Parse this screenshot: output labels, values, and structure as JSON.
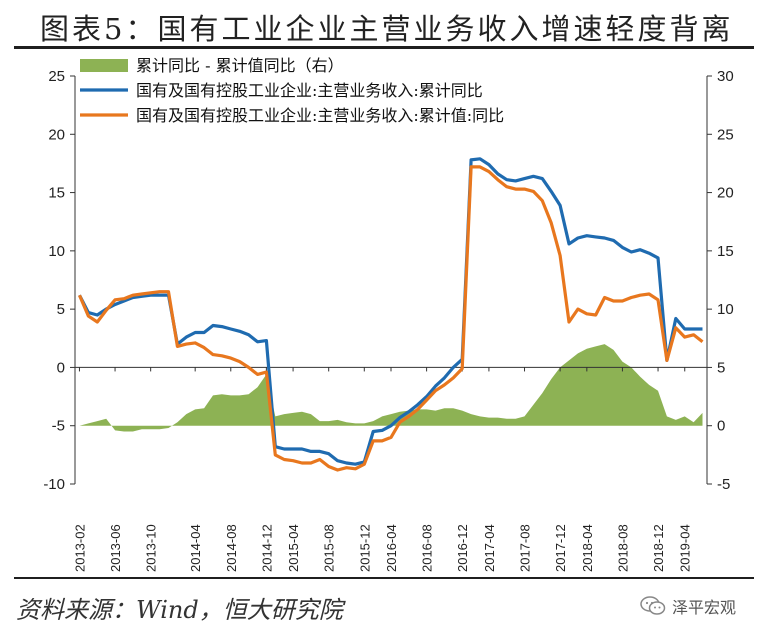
{
  "title": "图表5：国有工业企业主营业务收入增速轻度背离",
  "source": "资料来源：Wind，恒大研究院",
  "brand": {
    "name": "泽平宏观",
    "icon": "wechat-icon"
  },
  "chart_data": {
    "type": "line",
    "x": [
      "2013-02",
      "2013-03",
      "2013-04",
      "2013-05",
      "2013-06",
      "2013-07",
      "2013-08",
      "2013-09",
      "2013-10",
      "2013-11",
      "2013-12",
      "2014-02",
      "2014-03",
      "2014-04",
      "2014-05",
      "2014-06",
      "2014-07",
      "2014-08",
      "2014-09",
      "2014-10",
      "2014-11",
      "2014-12",
      "2015-02",
      "2015-03",
      "2015-04",
      "2015-05",
      "2015-06",
      "2015-07",
      "2015-08",
      "2015-09",
      "2015-10",
      "2015-11",
      "2015-12",
      "2016-02",
      "2016-03",
      "2016-04",
      "2016-05",
      "2016-06",
      "2016-07",
      "2016-08",
      "2016-09",
      "2016-10",
      "2016-11",
      "2016-12",
      "2017-02",
      "2017-03",
      "2017-04",
      "2017-05",
      "2017-06",
      "2017-07",
      "2017-08",
      "2017-09",
      "2017-10",
      "2017-11",
      "2017-12",
      "2018-02",
      "2018-03",
      "2018-04",
      "2018-05",
      "2018-06",
      "2018-07",
      "2018-08",
      "2018-09",
      "2018-10",
      "2018-11",
      "2018-12",
      "2019-02",
      "2019-03",
      "2019-04",
      "2019-05",
      "2019-06"
    ],
    "x_tick_labels": [
      "2013-02",
      "2013-06",
      "2013-10",
      "2014-04",
      "2014-08",
      "2014-12",
      "2015-04",
      "2015-08",
      "2015-12",
      "2016-04",
      "2016-08",
      "2016-12",
      "2017-04",
      "2017-08",
      "2017-12",
      "2018-04",
      "2018-08",
      "2018-12",
      "2019-04"
    ],
    "y_left": {
      "ylim": [
        -10,
        25
      ],
      "ticks": [
        -10,
        -5,
        0,
        5,
        10,
        15,
        20,
        25
      ]
    },
    "y_right": {
      "ylim": [
        -5,
        30
      ],
      "ticks": [
        -5,
        0,
        5,
        10,
        15,
        20,
        25,
        30
      ]
    },
    "grid": false,
    "legend_position": "top-left",
    "colors": {
      "area": "#8DB254",
      "series1": "#1F6BB0",
      "series2": "#E8771E",
      "axis": "#333333"
    },
    "series": [
      {
        "name": "累计同比 - 累计值同比（右）",
        "type": "area",
        "axis": "right",
        "values": [
          0,
          0.2,
          0.4,
          0.6,
          -0.4,
          -0.5,
          -0.5,
          -0.3,
          -0.3,
          -0.3,
          -0.2,
          0.3,
          1.0,
          1.4,
          1.5,
          2.6,
          2.7,
          2.6,
          2.6,
          2.7,
          3.3,
          4.4,
          0.8,
          1.0,
          1.1,
          1.2,
          1.0,
          0.4,
          0.4,
          0.5,
          0.3,
          0.2,
          0.2,
          0.4,
          0.8,
          1.0,
          1.2,
          1.3,
          1.4,
          1.4,
          1.3,
          1.5,
          1.5,
          1.3,
          1.0,
          0.8,
          0.7,
          0.7,
          0.6,
          0.6,
          0.8,
          1.8,
          2.8,
          4.0,
          5.0,
          5.6,
          6.2,
          6.6,
          6.8,
          7.0,
          6.5,
          5.5,
          5.0,
          4.2,
          3.5,
          3.0,
          0.8,
          0.5,
          0.8,
          0.3,
          1.1
        ]
      },
      {
        "name": "国有及国有控股工业企业:主营业务收入:累计同比",
        "type": "line",
        "axis": "left",
        "values": [
          6.2,
          4.7,
          4.5,
          5.0,
          5.4,
          5.7,
          6.0,
          6.1,
          6.2,
          6.2,
          6.2,
          2.0,
          2.6,
          3.0,
          3.0,
          3.6,
          3.5,
          3.3,
          3.1,
          2.8,
          2.2,
          2.3,
          -6.8,
          -7.0,
          -7.0,
          -7.0,
          -7.2,
          -7.2,
          -7.4,
          -8.0,
          -8.2,
          -8.3,
          -8.1,
          -5.5,
          -5.4,
          -5.0,
          -4.3,
          -3.8,
          -3.2,
          -2.5,
          -1.6,
          -0.9,
          0.0,
          0.7,
          17.8,
          17.9,
          17.4,
          16.6,
          16.1,
          16.0,
          16.2,
          16.4,
          16.2,
          15.1,
          13.9,
          10.6,
          11.1,
          11.3,
          11.2,
          11.1,
          10.9,
          10.3,
          9.9,
          10.1,
          9.8,
          9.4,
          0.6,
          4.2,
          3.3,
          3.3,
          3.3
        ]
      },
      {
        "name": "国有及国有控股工业企业:主营业务收入:累计值:同比",
        "type": "line",
        "axis": "left",
        "values": [
          6.2,
          4.4,
          3.9,
          4.9,
          5.8,
          5.9,
          6.2,
          6.3,
          6.4,
          6.5,
          6.5,
          1.8,
          2.0,
          2.1,
          1.7,
          1.1,
          1.0,
          0.8,
          0.5,
          0.0,
          -0.6,
          -0.4,
          -7.5,
          -7.9,
          -8.0,
          -8.2,
          -8.2,
          -7.9,
          -8.5,
          -8.8,
          -8.6,
          -8.7,
          -8.3,
          -6.3,
          -6.3,
          -6.0,
          -4.7,
          -4.2,
          -3.6,
          -2.8,
          -2.0,
          -1.5,
          -0.9,
          -0.1,
          17.2,
          17.2,
          16.8,
          16.1,
          15.5,
          15.3,
          15.3,
          15.1,
          14.3,
          12.4,
          9.6,
          3.9,
          5.0,
          4.6,
          4.5,
          6.0,
          5.7,
          5.7,
          6.0,
          6.2,
          6.3,
          5.8,
          0.6,
          3.4,
          2.6,
          2.8,
          2.2
        ]
      }
    ]
  }
}
